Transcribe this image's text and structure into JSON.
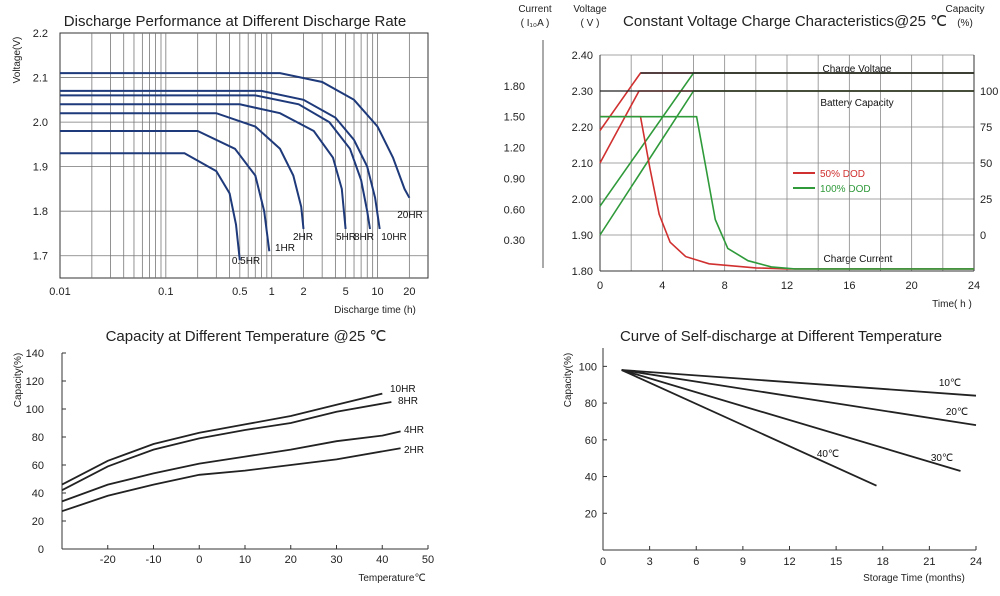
{
  "chart_data": [
    {
      "type": "line",
      "title": "Discharge Performance at Different Discharge Rate",
      "xlabel": "Discharge time (h)",
      "ylabel": "Voltage(V)",
      "x_scale": "log",
      "xlim": [
        0.01,
        30
      ],
      "ylim": [
        1.65,
        2.2
      ],
      "x_ticks": [
        "0.01",
        "0.1",
        "0.5",
        "1",
        "2",
        "5",
        "10",
        "20"
      ],
      "x_tick_values": [
        0.01,
        0.1,
        0.5,
        1,
        2,
        5,
        10,
        20
      ],
      "y_ticks": [
        "1.7",
        "1.8",
        "1.9",
        "2.0",
        "2.1",
        "2.2"
      ],
      "y_tick_values": [
        1.7,
        1.8,
        1.9,
        2.0,
        2.1,
        2.2
      ],
      "grid": true,
      "line_color": "#1f3a7a",
      "series": [
        {
          "name": "20HR",
          "points": [
            [
              0.01,
              2.11
            ],
            [
              1.2,
              2.11
            ],
            [
              3,
              2.09
            ],
            [
              6,
              2.05
            ],
            [
              10,
              1.99
            ],
            [
              14,
              1.92
            ],
            [
              18,
              1.85
            ],
            [
              20,
              1.83
            ]
          ]
        },
        {
          "name": "10HR",
          "points": [
            [
              0.01,
              2.07
            ],
            [
              0.8,
              2.07
            ],
            [
              2,
              2.05
            ],
            [
              4,
              2.01
            ],
            [
              6,
              1.96
            ],
            [
              8,
              1.9
            ],
            [
              9.5,
              1.83
            ],
            [
              10.5,
              1.76
            ]
          ]
        },
        {
          "name": "8HR",
          "points": [
            [
              0.01,
              2.06
            ],
            [
              0.7,
              2.06
            ],
            [
              1.8,
              2.04
            ],
            [
              3.5,
              2.0
            ],
            [
              5.5,
              1.94
            ],
            [
              7,
              1.87
            ],
            [
              8,
              1.8
            ],
            [
              8.5,
              1.76
            ]
          ]
        },
        {
          "name": "5HR",
          "points": [
            [
              0.01,
              2.04
            ],
            [
              0.5,
              2.04
            ],
            [
              1.2,
              2.02
            ],
            [
              2.5,
              1.98
            ],
            [
              3.8,
              1.92
            ],
            [
              4.6,
              1.85
            ],
            [
              5,
              1.76
            ]
          ]
        },
        {
          "name": "2HR",
          "points": [
            [
              0.01,
              2.02
            ],
            [
              0.3,
              2.02
            ],
            [
              0.7,
              1.99
            ],
            [
              1.2,
              1.94
            ],
            [
              1.6,
              1.88
            ],
            [
              1.9,
              1.81
            ],
            [
              2,
              1.76
            ]
          ]
        },
        {
          "name": "1HR",
          "points": [
            [
              0.01,
              1.98
            ],
            [
              0.2,
              1.98
            ],
            [
              0.45,
              1.94
            ],
            [
              0.7,
              1.88
            ],
            [
              0.85,
              1.8
            ],
            [
              0.95,
              1.71
            ]
          ]
        },
        {
          "name": "0.5HR",
          "points": [
            [
              0.01,
              1.93
            ],
            [
              0.15,
              1.93
            ],
            [
              0.3,
              1.89
            ],
            [
              0.4,
              1.84
            ],
            [
              0.46,
              1.77
            ],
            [
              0.5,
              1.69
            ]
          ]
        }
      ],
      "labels": [
        "20HR",
        "10HR",
        "8HR",
        "5HR",
        "2HR",
        "1HR",
        "0.5HR"
      ]
    },
    {
      "type": "line",
      "title": "Constant Voltage Charge Characteristics@25 ℃",
      "xlabel": "Time( h )",
      "y_left_current_label": [
        "Current",
        "( I₁₀A )"
      ],
      "y_left_voltage_label": [
        "Voltage",
        "( V )"
      ],
      "y_right_label": [
        "Capacity",
        "(%)"
      ],
      "xlim": [
        0,
        24
      ],
      "x_ticks": [
        "0",
        "4",
        "8",
        "12",
        "16",
        "20",
        "24"
      ],
      "voltage_ticks": [
        "2.40",
        "2.30",
        "2.20",
        "2.10",
        "2.00",
        "1.90",
        "1.80"
      ],
      "voltage_lim": [
        1.8,
        2.4
      ],
      "current_ticks": [
        "1.80",
        "1.50",
        "1.20",
        "0.90",
        "0.60",
        "0.30"
      ],
      "current_lim": [
        0,
        2.1
      ],
      "capacity_ticks": [
        "100",
        "75",
        "50",
        "25",
        "0"
      ],
      "capacity_lim": [
        -25,
        125
      ],
      "grid": true,
      "annotations": [
        "Charge Voltage",
        "Battery Capacity",
        "Charge Current"
      ],
      "series": [
        {
          "name": "50% DOD",
          "color": "#d0302f",
          "group": "voltage",
          "points": [
            [
              0,
              2.19
            ],
            [
              2.6,
              2.35
            ],
            [
              24,
              2.35
            ]
          ]
        },
        {
          "name": "100% DOD",
          "color": "#2f9a3a",
          "group": "voltage",
          "points": [
            [
              0,
              1.98
            ],
            [
              6,
              2.35
            ],
            [
              24,
              2.35
            ]
          ]
        },
        {
          "name": "50% DOD",
          "color": "#d0302f",
          "group": "capacity",
          "points": [
            [
              0,
              50
            ],
            [
              2.5,
              100
            ],
            [
              24,
              100
            ]
          ]
        },
        {
          "name": "100% DOD",
          "color": "#2f9a3a",
          "group": "capacity",
          "points": [
            [
              0,
              0
            ],
            [
              6,
              100
            ],
            [
              24,
              100
            ]
          ]
        },
        {
          "name": "50% DOD",
          "color": "#d0302f",
          "group": "current",
          "points": [
            [
              0,
              1.5
            ],
            [
              2.6,
              1.5
            ],
            [
              3.2,
              1.0
            ],
            [
              3.8,
              0.55
            ],
            [
              4.5,
              0.28
            ],
            [
              5.5,
              0.14
            ],
            [
              7,
              0.07
            ],
            [
              10,
              0.03
            ],
            [
              12,
              0.02
            ],
            [
              24,
              0.02
            ]
          ]
        },
        {
          "name": "100% DOD",
          "color": "#2f9a3a",
          "group": "current",
          "points": [
            [
              0,
              1.5
            ],
            [
              6.2,
              1.5
            ],
            [
              6.8,
              1.0
            ],
            [
              7.4,
              0.5
            ],
            [
              8.2,
              0.22
            ],
            [
              9.5,
              0.1
            ],
            [
              11,
              0.04
            ],
            [
              12.5,
              0.02
            ],
            [
              24,
              0.02
            ]
          ]
        }
      ],
      "legend": [
        "50% DOD",
        "100% DOD"
      ]
    },
    {
      "type": "line",
      "title": "Capacity at Different Temperature @25 ℃",
      "xlabel": "Temperature℃",
      "ylabel": "Capacity(%)",
      "xlim": [
        -30,
        50
      ],
      "ylim": [
        0,
        140
      ],
      "x_ticks": [
        "-20",
        "-10",
        "0",
        "10",
        "20",
        "30",
        "40",
        "50"
      ],
      "x_tick_values": [
        -20,
        -10,
        0,
        10,
        20,
        30,
        40,
        50
      ],
      "y_ticks": [
        "0",
        "20",
        "40",
        "60",
        "80",
        "100",
        "120",
        "140"
      ],
      "y_tick_values": [
        0,
        20,
        40,
        60,
        80,
        100,
        120,
        140
      ],
      "series": [
        {
          "name": "10HR",
          "points": [
            [
              -30,
              46
            ],
            [
              -20,
              63
            ],
            [
              -10,
              75
            ],
            [
              0,
              83
            ],
            [
              10,
              89
            ],
            [
              20,
              95
            ],
            [
              30,
              103
            ],
            [
              40,
              111
            ]
          ]
        },
        {
          "name": "8HR",
          "points": [
            [
              -30,
              42
            ],
            [
              -20,
              59
            ],
            [
              -10,
              71
            ],
            [
              0,
              79
            ],
            [
              10,
              85
            ],
            [
              20,
              90
            ],
            [
              30,
              98
            ],
            [
              42,
              105
            ]
          ]
        },
        {
          "name": "4HR",
          "points": [
            [
              -30,
              34
            ],
            [
              -20,
              46
            ],
            [
              -10,
              54
            ],
            [
              0,
              61
            ],
            [
              10,
              66
            ],
            [
              20,
              71
            ],
            [
              30,
              77
            ],
            [
              40,
              81
            ],
            [
              44,
              84
            ]
          ]
        },
        {
          "name": "2HR",
          "points": [
            [
              -30,
              27
            ],
            [
              -20,
              38
            ],
            [
              -10,
              46
            ],
            [
              0,
              53
            ],
            [
              10,
              56
            ],
            [
              20,
              60
            ],
            [
              30,
              64
            ],
            [
              44,
              72
            ]
          ]
        }
      ],
      "labels": [
        "10HR",
        "8HR",
        "4HR",
        "2HR"
      ]
    },
    {
      "type": "line",
      "title": "Curve of Self-discharge at Different Temperature",
      "xlabel": "Storage Time (months)",
      "ylabel": "Capacity(%)",
      "xlim": [
        0,
        24
      ],
      "ylim": [
        0,
        110
      ],
      "x_ticks": [
        "0",
        "3",
        "6",
        "9",
        "12",
        "15",
        "18",
        "21",
        "24"
      ],
      "x_tick_values": [
        0,
        3,
        6,
        9,
        12,
        15,
        18,
        21,
        24
      ],
      "y_ticks": [
        "20",
        "40",
        "60",
        "80",
        "100"
      ],
      "y_tick_values": [
        20,
        40,
        60,
        80,
        100
      ],
      "series": [
        {
          "name": "10℃",
          "points": [
            [
              1.2,
              98
            ],
            [
              24,
              84
            ]
          ]
        },
        {
          "name": "20℃",
          "points": [
            [
              1.2,
              98
            ],
            [
              24,
              68
            ]
          ]
        },
        {
          "name": "30℃",
          "points": [
            [
              1.2,
              98
            ],
            [
              23,
              43
            ]
          ]
        },
        {
          "name": "40℃",
          "points": [
            [
              1.2,
              98
            ],
            [
              17.6,
              35
            ]
          ]
        }
      ],
      "labels": [
        "10℃",
        "20℃",
        "30℃",
        "40℃"
      ]
    }
  ]
}
